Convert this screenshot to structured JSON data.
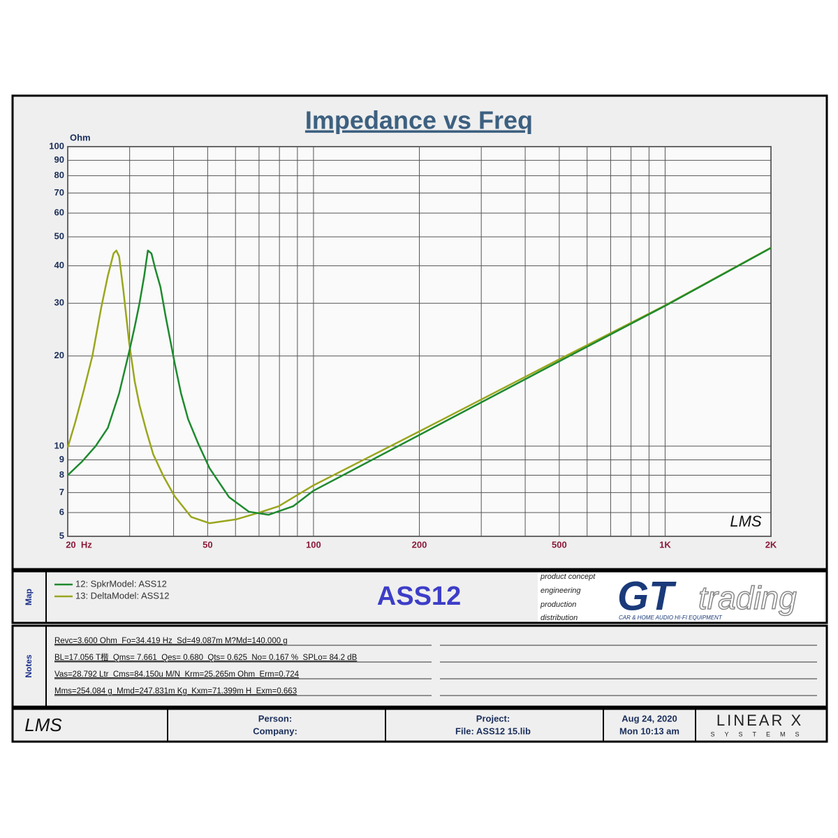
{
  "chart_data": {
    "type": "line",
    "title": "Impedance vs Freq",
    "y_label": "Ohm",
    "watermark": "LMS",
    "log_x": true,
    "log_y": true,
    "grid": true,
    "xlim": [
      20,
      2000
    ],
    "ylim": [
      5,
      100
    ],
    "xticks": [
      {
        "value": 20,
        "label": "20  Hz"
      },
      50,
      100,
      200,
      500,
      {
        "value": 1000,
        "label": "1K"
      },
      {
        "value": 2000,
        "label": "2K"
      }
    ],
    "xgrid": [
      20,
      30,
      40,
      50,
      60,
      70,
      80,
      90,
      100,
      200,
      300,
      400,
      500,
      600,
      700,
      800,
      900,
      1000,
      2000
    ],
    "yticks": [
      5,
      6,
      7,
      8,
      9,
      10,
      20,
      30,
      40,
      50,
      60,
      70,
      80,
      90,
      100
    ],
    "series": [
      {
        "name": "12: SpkrModel: ASS12",
        "color": "#1e8a2e",
        "x": [
          20,
          22,
          24,
          26,
          28,
          30,
          31,
          32,
          33,
          33.8,
          34.6,
          35.5,
          36.7,
          38,
          40.3,
          42,
          44,
          47,
          50.6,
          57.5,
          65.5,
          74.5,
          87.5,
          100,
          200,
          500,
          1000,
          2000
        ],
        "values": [
          8.0,
          8.9,
          10.0,
          11.5,
          15,
          21,
          25,
          30,
          37,
          45,
          44,
          39,
          34,
          27,
          18.9,
          15,
          12.3,
          10.2,
          8.45,
          6.76,
          6.04,
          5.9,
          6.3,
          7.1,
          10.9,
          19.2,
          29.4,
          45.9
        ]
      },
      {
        "name": "13: DeltaModel: ASS12",
        "color": "#9aa61e",
        "x": [
          20,
          21,
          22.2,
          23.5,
          24.9,
          26,
          27,
          27.5,
          28,
          28.8,
          29.9,
          31,
          32,
          33.5,
          35,
          37.5,
          40.3,
          44.9,
          50.6,
          60.4,
          70,
          79.6,
          100,
          200,
          500,
          1000,
          2000
        ],
        "values": [
          9.9,
          12,
          15.3,
          20,
          29,
          37,
          44,
          45,
          43,
          33,
          22.2,
          16.5,
          13.7,
          11.2,
          9.4,
          7.9,
          6.8,
          5.8,
          5.53,
          5.7,
          6.0,
          6.3,
          7.4,
          11.2,
          19.5,
          29.5,
          46
        ]
      }
    ]
  },
  "map": {
    "label": "Map",
    "model": "ASS12",
    "logo": {
      "taglines": [
        "product concept",
        "engineering",
        "production",
        "distribution"
      ],
      "brand": "GT",
      "name": "trading",
      "subtitle": "CAR & HOME AUDIO HI-FI EQUIPMENT"
    }
  },
  "notes": {
    "label": "Notes",
    "lines": [
      "Revc=3.600 Ohm  Fo=34.419 Hz  Sd=49.087m M?Md=140.000 g",
      "BL=17.056 T楷  Qms= 7.661  Qes= 0.680  Qts= 0.625  No= 0.167 %  SPLo= 84.2 dB",
      "Vas=28.792 Ltr  Cms=84.150u M/N  Krm=25.265m Ohm  Erm=0.724",
      "Mms=254.084 g  Mmd=247.831m Kg  Kxm=71.399m H  Exm=0.663"
    ]
  },
  "footer": {
    "logo": "LMS",
    "person": "Person:",
    "company": "Company:",
    "project": "Project:",
    "file": "File: ASS12 15.lib",
    "date": "Aug 24, 2020",
    "time": "Mon 10:13 am",
    "brand": "LINEAR X",
    "brand_sub": "SYSTEMS"
  }
}
